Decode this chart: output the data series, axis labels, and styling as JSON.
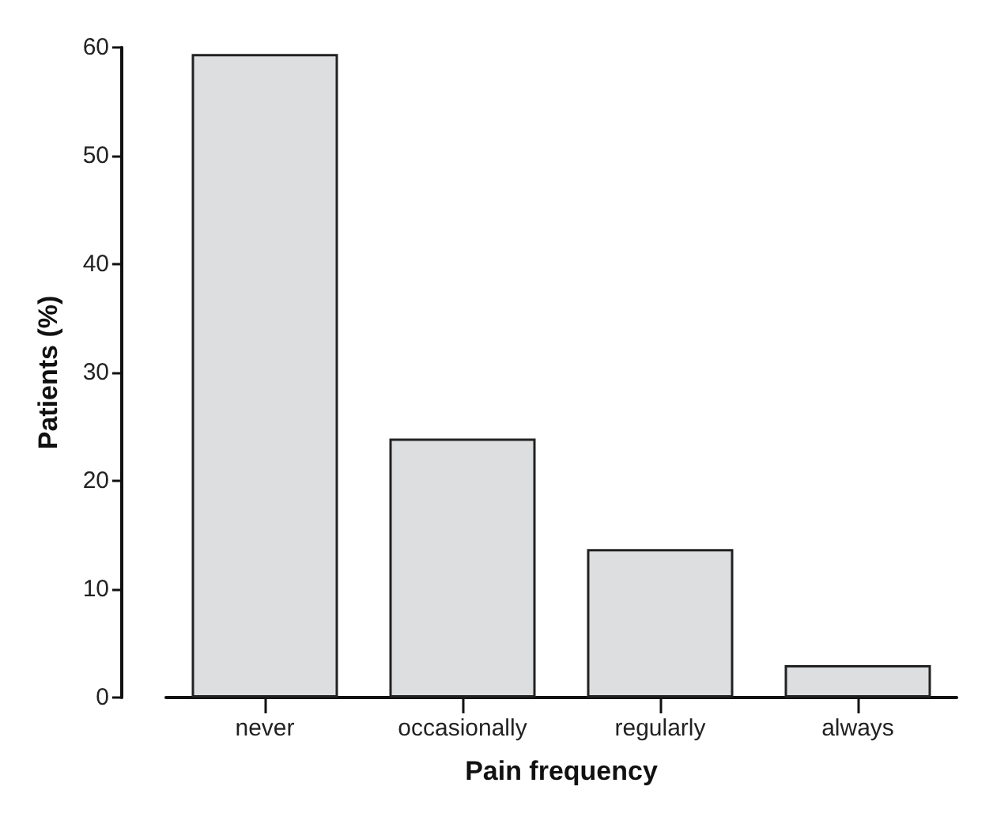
{
  "chart_data": {
    "type": "bar",
    "xlabel": "Pain frequency",
    "ylabel": "Patients (%)",
    "categories": [
      "never",
      "occasionally",
      "regularly",
      "always"
    ],
    "values": [
      59.4,
      23.9,
      13.7,
      3.0
    ],
    "color": "#dddee0",
    "ylim": [
      0,
      60
    ],
    "yticks": [
      0,
      10,
      20,
      30,
      40,
      50,
      60
    ]
  }
}
